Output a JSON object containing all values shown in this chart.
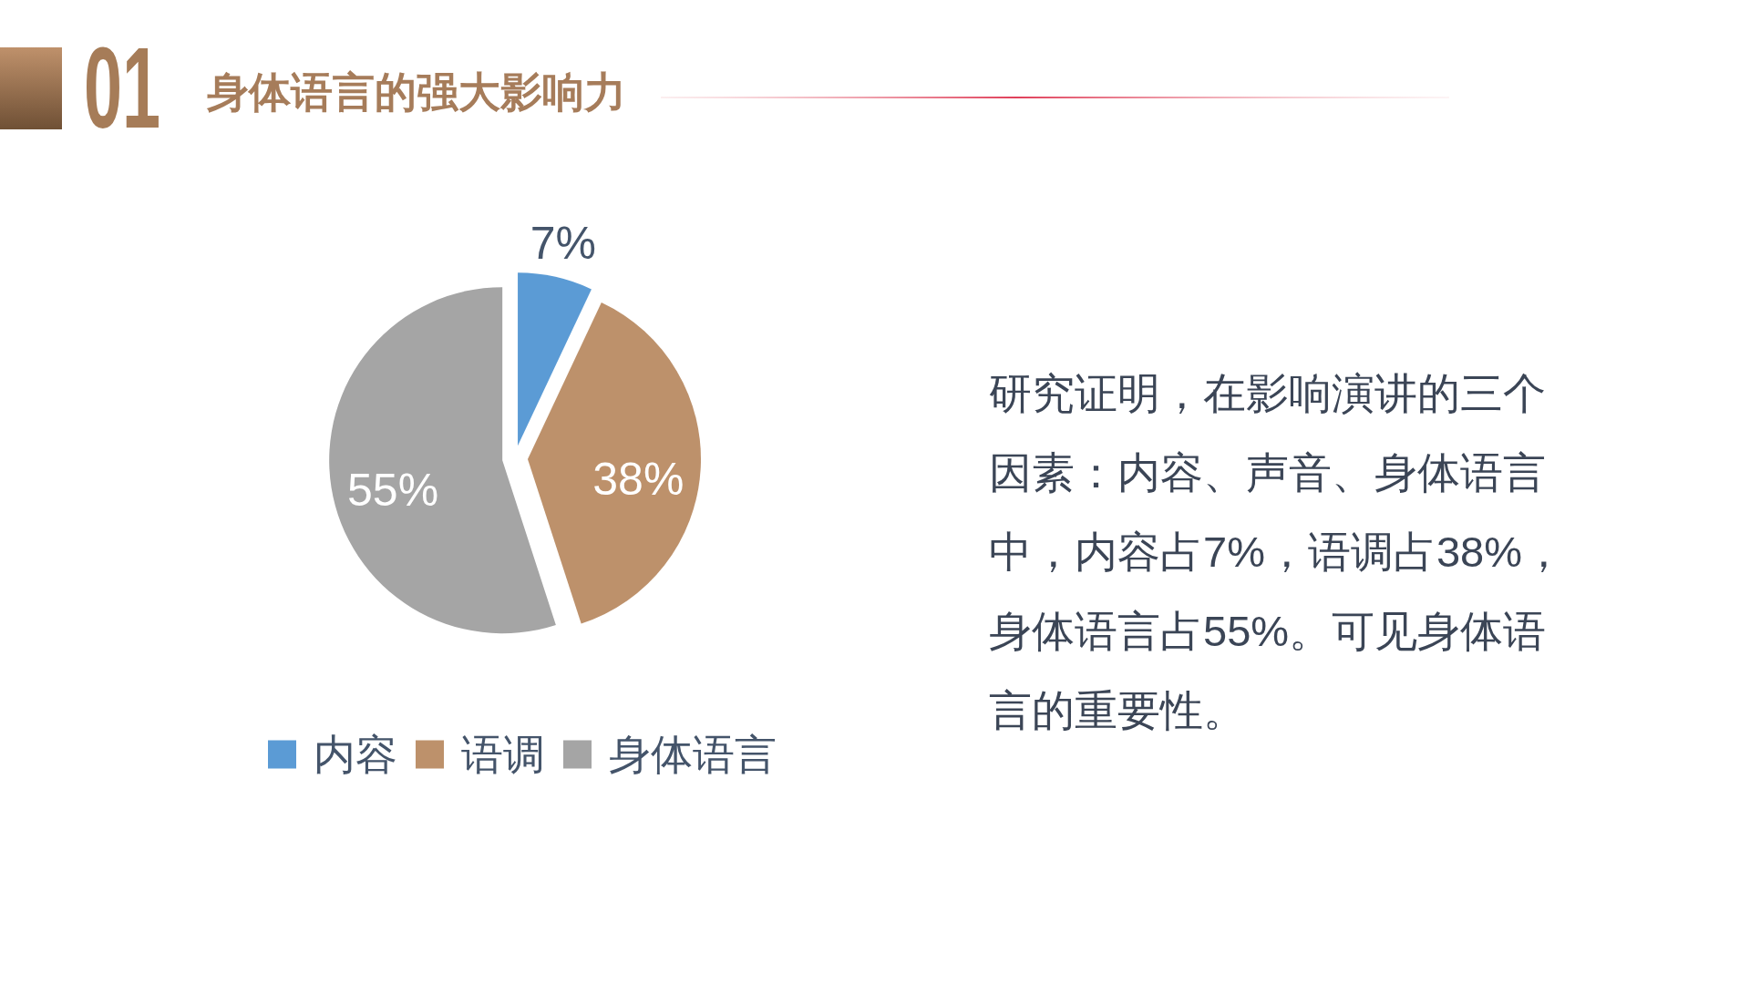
{
  "chart_data": {
    "type": "pie",
    "title": "身体语言的强大影响力",
    "categories": [
      "内容",
      "语调",
      "身体语言"
    ],
    "values": [
      7,
      38,
      55
    ],
    "colors": [
      "#5b9bd5",
      "#bd916b",
      "#a5a5a5"
    ],
    "value_labels": [
      "7%",
      "38%",
      "55%"
    ],
    "legend": "bottom",
    "annotations": [
      "01",
      "研究证明，在影响演讲的三个因素：内容、声音、身体语言中，内容占7%，语调占38%，身体语言占55%。可见身体语言的重要性。"
    ]
  }
}
